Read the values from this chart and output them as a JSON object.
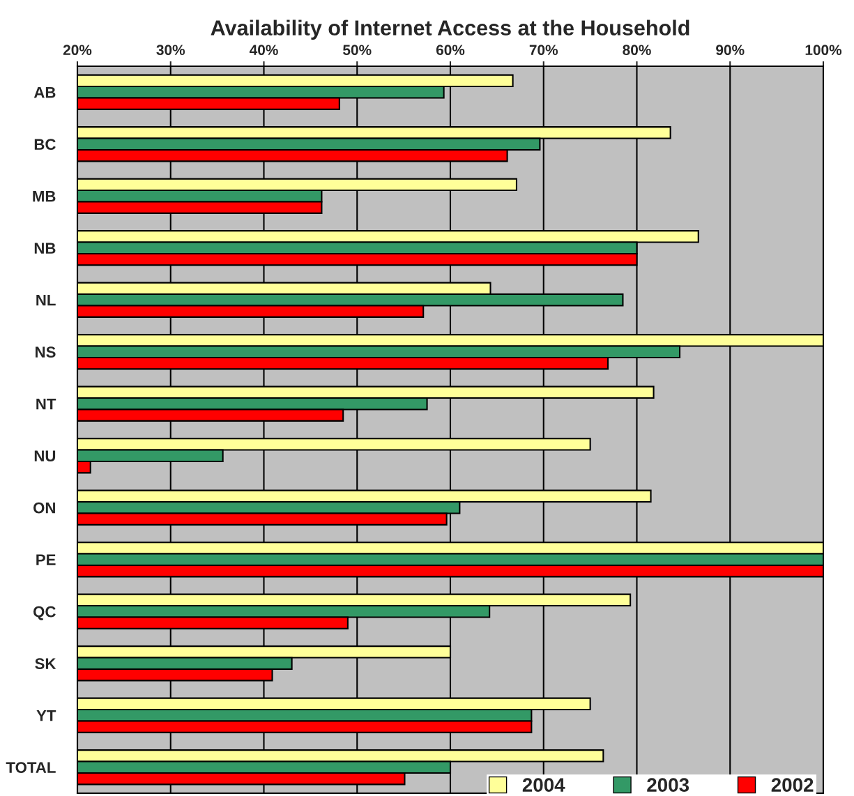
{
  "chart_data": {
    "type": "bar",
    "orientation": "horizontal",
    "title": "Availability of Internet Access at the Household",
    "categories": [
      "AB",
      "BC",
      "MB",
      "NB",
      "NL",
      "NS",
      "NT",
      "NU",
      "ON",
      "PE",
      "QC",
      "SK",
      "YT",
      "TOTAL"
    ],
    "series": [
      {
        "name": "2004",
        "color": "#ffff99",
        "values": [
          66.7,
          83.6,
          67.1,
          86.6,
          64.3,
          100,
          81.8,
          75.0,
          81.5,
          100,
          79.3,
          60.0,
          75.0,
          76.4
        ]
      },
      {
        "name": "2003",
        "color": "#339966",
        "values": [
          59.3,
          69.6,
          46.2,
          80.0,
          78.5,
          84.6,
          57.5,
          35.6,
          61.0,
          100,
          64.2,
          43.0,
          68.7,
          60.0
        ]
      },
      {
        "name": "2002",
        "color": "#ff0000",
        "values": [
          48.1,
          66.1,
          46.2,
          80.0,
          57.1,
          76.9,
          48.5,
          21.4,
          59.6,
          100,
          49.0,
          40.9,
          68.7,
          55.1
        ]
      }
    ],
    "xlim": [
      20,
      100
    ],
    "xticks": [
      {
        "value": 20,
        "label": "20%"
      },
      {
        "value": 30,
        "label": "30%"
      },
      {
        "value": 40,
        "label": "40%"
      },
      {
        "value": 50,
        "label": "50%"
      },
      {
        "value": 60,
        "label": "60%"
      },
      {
        "value": 70,
        "label": "70%"
      },
      {
        "value": 80,
        "label": "80%"
      },
      {
        "value": 90,
        "label": "90%"
      },
      {
        "value": 100,
        "label": "100%"
      }
    ],
    "grid": "x",
    "legend": "bottom right"
  }
}
